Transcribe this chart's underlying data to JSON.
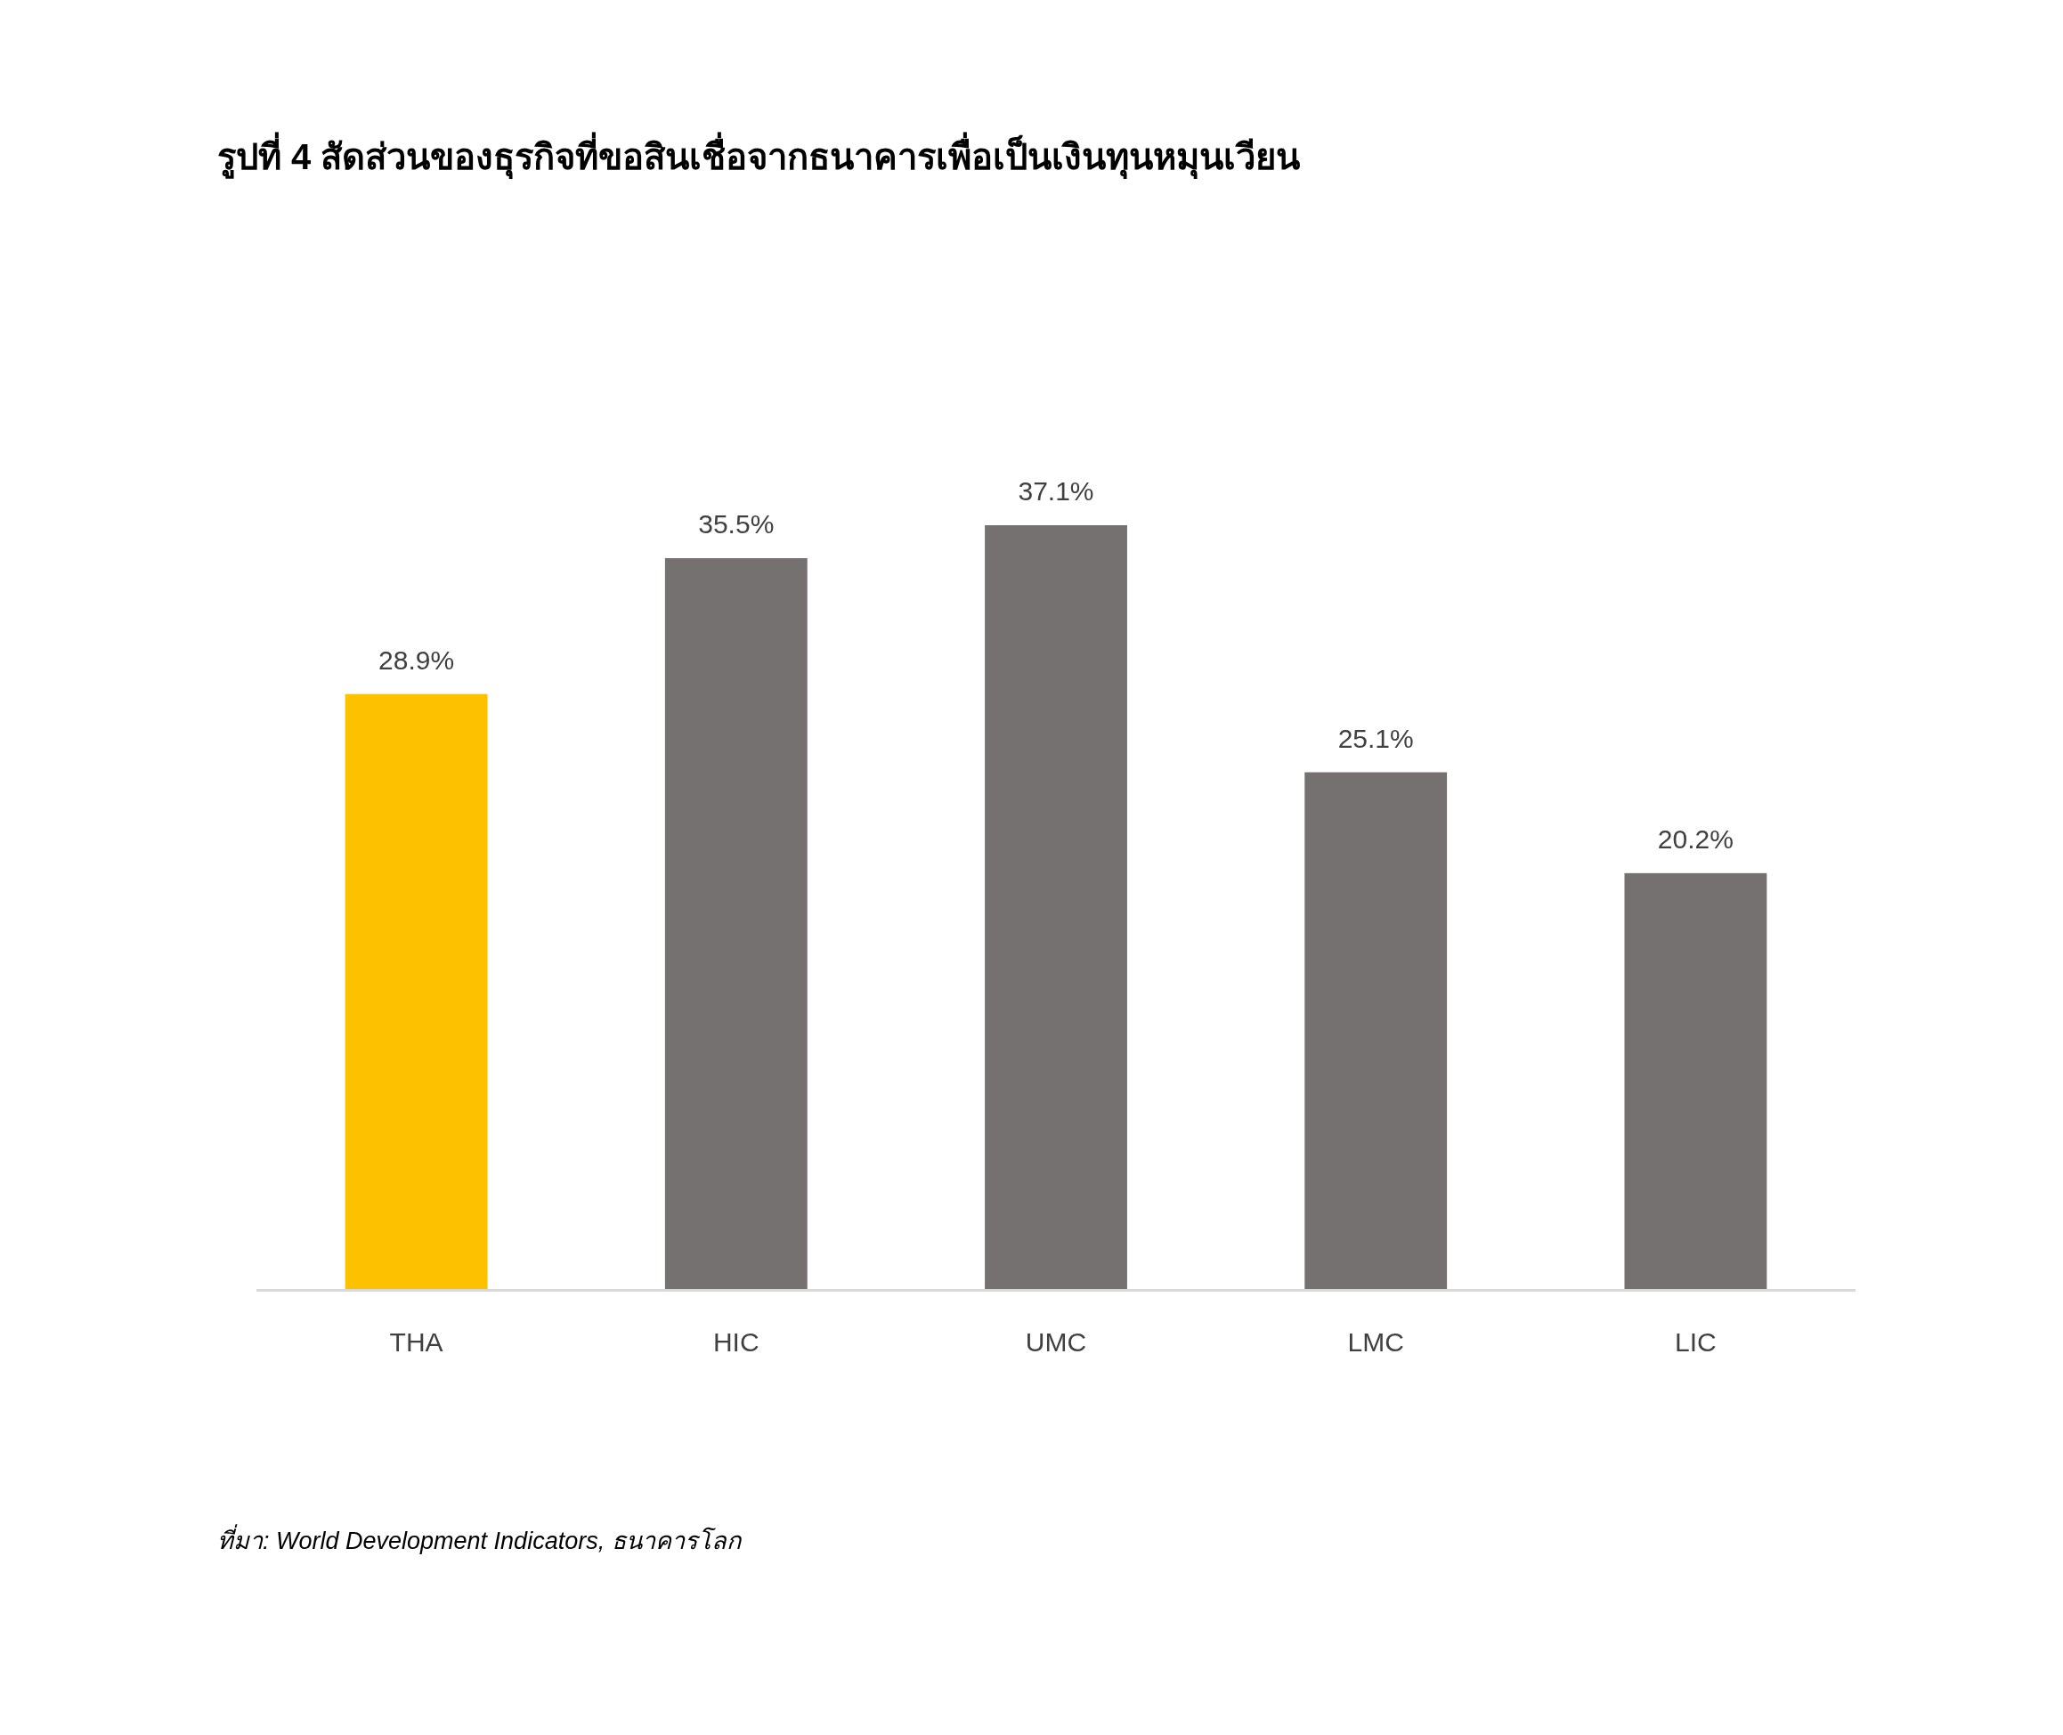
{
  "chart_data": {
    "type": "bar",
    "title": "รูปที่ 4 สัดส่วนของธุรกิจที่ขอสินเชื่อจากธนาคารเพื่อเป็นเงินทุนหมุนเวียน",
    "categories": [
      "THA",
      "HIC",
      "UMC",
      "LMC",
      "LIC"
    ],
    "values": [
      28.9,
      35.5,
      37.1,
      25.1,
      20.2
    ],
    "colors": [
      "#fdc100",
      "#767171",
      "#767171",
      "#767171",
      "#767171"
    ],
    "value_labels": [
      "28.9%",
      "35.5%",
      "37.1%",
      "25.1%",
      "20.2%"
    ],
    "annotations": [
      "ที่มา: World Development Indicators, ธนาคารโลก"
    ]
  }
}
